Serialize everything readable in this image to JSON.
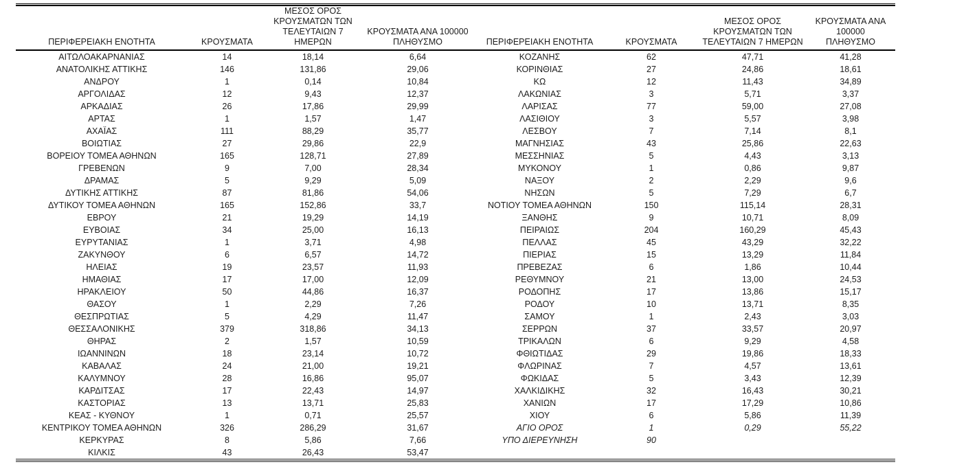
{
  "table": {
    "headers": {
      "region": "ΠΕΡΙΦΕΡΕΙΑΚΗ ΕΝΟΤΗΤΑ",
      "cases": "ΚΡΟΥΣΜΑΤΑ",
      "avg7": "ΜΕΣΟΣ ΟΡΟΣ\nΚΡΟΥΣΜΑΤΩΝ ΤΩΝ\nΤΕΛΕΥΤΑΙΩΝ 7 ΗΜΕΡΩΝ",
      "per100k": "ΚΡΟΥΣΜΑΤΑ ΑΝΑ 100000\nΠΛΗΘΥΣΜΟ"
    },
    "left_rows": [
      {
        "region": "ΑΙΤΩΛΟΑΚΑΡΝΑΝΙΑΣ",
        "cases": "14",
        "avg7": "18,14",
        "per100k": "6,64"
      },
      {
        "region": "ΑΝΑΤΟΛΙΚΗΣ ΑΤΤΙΚΗΣ",
        "cases": "146",
        "avg7": "131,86",
        "per100k": "29,06"
      },
      {
        "region": "ΑΝΔΡΟΥ",
        "cases": "1",
        "avg7": "0,14",
        "per100k": "10,84"
      },
      {
        "region": "ΑΡΓΟΛΙΔΑΣ",
        "cases": "12",
        "avg7": "9,43",
        "per100k": "12,37"
      },
      {
        "region": "ΑΡΚΑΔΙΑΣ",
        "cases": "26",
        "avg7": "17,86",
        "per100k": "29,99"
      },
      {
        "region": "ΑΡΤΑΣ",
        "cases": "1",
        "avg7": "1,57",
        "per100k": "1,47"
      },
      {
        "region": "ΑΧΑΪΑΣ",
        "cases": "111",
        "avg7": "88,29",
        "per100k": "35,77"
      },
      {
        "region": "ΒΟΙΩΤΙΑΣ",
        "cases": "27",
        "avg7": "29,86",
        "per100k": "22,9"
      },
      {
        "region": "ΒΟΡΕΙΟΥ ΤΟΜΕΑ ΑΘΗΝΩΝ",
        "cases": "165",
        "avg7": "128,71",
        "per100k": "27,89"
      },
      {
        "region": "ΓΡΕΒΕΝΩΝ",
        "cases": "9",
        "avg7": "7,00",
        "per100k": "28,34"
      },
      {
        "region": "ΔΡΑΜΑΣ",
        "cases": "5",
        "avg7": "9,29",
        "per100k": "5,09"
      },
      {
        "region": "ΔΥΤΙΚΗΣ ΑΤΤΙΚΗΣ",
        "cases": "87",
        "avg7": "81,86",
        "per100k": "54,06"
      },
      {
        "region": "ΔΥΤΙΚΟΥ ΤΟΜΕΑ ΑΘΗΝΩΝ",
        "cases": "165",
        "avg7": "152,86",
        "per100k": "33,7"
      },
      {
        "region": "ΕΒΡΟΥ",
        "cases": "21",
        "avg7": "19,29",
        "per100k": "14,19"
      },
      {
        "region": "ΕΥΒΟΙΑΣ",
        "cases": "34",
        "avg7": "25,00",
        "per100k": "16,13"
      },
      {
        "region": "ΕΥΡΥΤΑΝΙΑΣ",
        "cases": "1",
        "avg7": "3,71",
        "per100k": "4,98"
      },
      {
        "region": "ΖΑΚΥΝΘΟΥ",
        "cases": "6",
        "avg7": "6,57",
        "per100k": "14,72"
      },
      {
        "region": "ΗΛΕΙΑΣ",
        "cases": "19",
        "avg7": "23,57",
        "per100k": "11,93"
      },
      {
        "region": "ΗΜΑΘΙΑΣ",
        "cases": "17",
        "avg7": "17,00",
        "per100k": "12,09"
      },
      {
        "region": "ΗΡΑΚΛΕΙΟΥ",
        "cases": "50",
        "avg7": "44,86",
        "per100k": "16,37"
      },
      {
        "region": "ΘΑΣΟΥ",
        "cases": "1",
        "avg7": "2,29",
        "per100k": "7,26"
      },
      {
        "region": "ΘΕΣΠΡΩΤΙΑΣ",
        "cases": "5",
        "avg7": "4,29",
        "per100k": "11,47"
      },
      {
        "region": "ΘΕΣΣΑΛΟΝΙΚΗΣ",
        "cases": "379",
        "avg7": "318,86",
        "per100k": "34,13"
      },
      {
        "region": "ΘΗΡΑΣ",
        "cases": "2",
        "avg7": "1,57",
        "per100k": "10,59"
      },
      {
        "region": "ΙΩΑΝΝΙΝΩΝ",
        "cases": "18",
        "avg7": "23,14",
        "per100k": "10,72"
      },
      {
        "region": "ΚΑΒΑΛΑΣ",
        "cases": "24",
        "avg7": "21,00",
        "per100k": "19,21"
      },
      {
        "region": "ΚΑΛΥΜΝΟΥ",
        "cases": "28",
        "avg7": "16,86",
        "per100k": "95,07"
      },
      {
        "region": "ΚΑΡΔΙΤΣΑΣ",
        "cases": "17",
        "avg7": "22,43",
        "per100k": "14,97"
      },
      {
        "region": "ΚΑΣΤΟΡΙΑΣ",
        "cases": "13",
        "avg7": "13,71",
        "per100k": "25,83"
      },
      {
        "region": "ΚΕΑΣ - ΚΥΘΝΟΥ",
        "cases": "1",
        "avg7": "0,71",
        "per100k": "25,57"
      },
      {
        "region": "ΚΕΝΤΡΙΚΟΥ ΤΟΜΕΑ ΑΘΗΝΩΝ",
        "cases": "326",
        "avg7": "286,29",
        "per100k": "31,67"
      },
      {
        "region": "ΚΕΡΚΥΡΑΣ",
        "cases": "8",
        "avg7": "5,86",
        "per100k": "7,66"
      },
      {
        "region": "ΚΙΛΚΙΣ",
        "cases": "43",
        "avg7": "26,43",
        "per100k": "53,47"
      }
    ],
    "right_rows": [
      {
        "region": "ΚΟΖΑΝΗΣ",
        "cases": "62",
        "avg7": "47,71",
        "per100k": "41,28"
      },
      {
        "region": "ΚΟΡΙΝΘΙΑΣ",
        "cases": "27",
        "avg7": "24,86",
        "per100k": "18,61"
      },
      {
        "region": "ΚΩ",
        "cases": "12",
        "avg7": "11,43",
        "per100k": "34,89"
      },
      {
        "region": "ΛΑΚΩΝΙΑΣ",
        "cases": "3",
        "avg7": "5,71",
        "per100k": "3,37"
      },
      {
        "region": "ΛΑΡΙΣΑΣ",
        "cases": "77",
        "avg7": "59,00",
        "per100k": "27,08"
      },
      {
        "region": "ΛΑΣΙΘΙΟΥ",
        "cases": "3",
        "avg7": "5,57",
        "per100k": "3,98"
      },
      {
        "region": "ΛΕΣΒΟΥ",
        "cases": "7",
        "avg7": "7,14",
        "per100k": "8,1"
      },
      {
        "region": "ΜΑΓΝΗΣΙΑΣ",
        "cases": "43",
        "avg7": "25,86",
        "per100k": "22,63"
      },
      {
        "region": "ΜΕΣΣΗΝΙΑΣ",
        "cases": "5",
        "avg7": "4,43",
        "per100k": "3,13"
      },
      {
        "region": "ΜΥΚΟΝΟΥ",
        "cases": "1",
        "avg7": "0,86",
        "per100k": "9,87"
      },
      {
        "region": "ΝΑΞΟΥ",
        "cases": "2",
        "avg7": "2,29",
        "per100k": "9,6"
      },
      {
        "region": "ΝΗΣΩΝ",
        "cases": "5",
        "avg7": "7,29",
        "per100k": "6,7"
      },
      {
        "region": "ΝΟΤΙΟΥ ΤΟΜΕΑ ΑΘΗΝΩΝ",
        "cases": "150",
        "avg7": "115,14",
        "per100k": "28,31"
      },
      {
        "region": "ΞΑΝΘΗΣ",
        "cases": "9",
        "avg7": "10,71",
        "per100k": "8,09"
      },
      {
        "region": "ΠΕΙΡΑΙΩΣ",
        "cases": "204",
        "avg7": "160,29",
        "per100k": "45,43"
      },
      {
        "region": "ΠΕΛΛΑΣ",
        "cases": "45",
        "avg7": "43,29",
        "per100k": "32,22"
      },
      {
        "region": "ΠΙΕΡΙΑΣ",
        "cases": "15",
        "avg7": "13,29",
        "per100k": "11,84"
      },
      {
        "region": "ΠΡΕΒΕΖΑΣ",
        "cases": "6",
        "avg7": "1,86",
        "per100k": "10,44"
      },
      {
        "region": "ΡΕΘΥΜΝΟΥ",
        "cases": "21",
        "avg7": "13,00",
        "per100k": "24,53"
      },
      {
        "region": "ΡΟΔΟΠΗΣ",
        "cases": "17",
        "avg7": "13,86",
        "per100k": "15,17"
      },
      {
        "region": "ΡΟΔΟΥ",
        "cases": "10",
        "avg7": "13,71",
        "per100k": "8,35"
      },
      {
        "region": "ΣΑΜΟΥ",
        "cases": "1",
        "avg7": "2,43",
        "per100k": "3,03"
      },
      {
        "region": "ΣΕΡΡΩΝ",
        "cases": "37",
        "avg7": "33,57",
        "per100k": "20,97"
      },
      {
        "region": "ΤΡΙΚΑΛΩΝ",
        "cases": "6",
        "avg7": "9,29",
        "per100k": "4,58"
      },
      {
        "region": "ΦΘΙΩΤΙΔΑΣ",
        "cases": "29",
        "avg7": "19,86",
        "per100k": "18,33"
      },
      {
        "region": "ΦΛΩΡΙΝΑΣ",
        "cases": "7",
        "avg7": "4,57",
        "per100k": "13,61"
      },
      {
        "region": "ΦΩΚΙΔΑΣ",
        "cases": "5",
        "avg7": "3,43",
        "per100k": "12,39"
      },
      {
        "region": "ΧΑΛΚΙΔΙΚΗΣ",
        "cases": "32",
        "avg7": "16,43",
        "per100k": "30,21"
      },
      {
        "region": "ΧΑΝΙΩΝ",
        "cases": "17",
        "avg7": "17,29",
        "per100k": "10,86"
      },
      {
        "region": "ΧΙΟΥ",
        "cases": "6",
        "avg7": "5,86",
        "per100k": "11,39"
      },
      {
        "region": "ΑΓΙΟ ΟΡΟΣ",
        "cases": "1",
        "avg7": "0,29",
        "per100k": "55,22",
        "italic": true
      },
      {
        "region": "ΥΠΟ ΔΙΕΡΕΥΝΗΣΗ",
        "cases": "90",
        "italic": true
      }
    ]
  }
}
